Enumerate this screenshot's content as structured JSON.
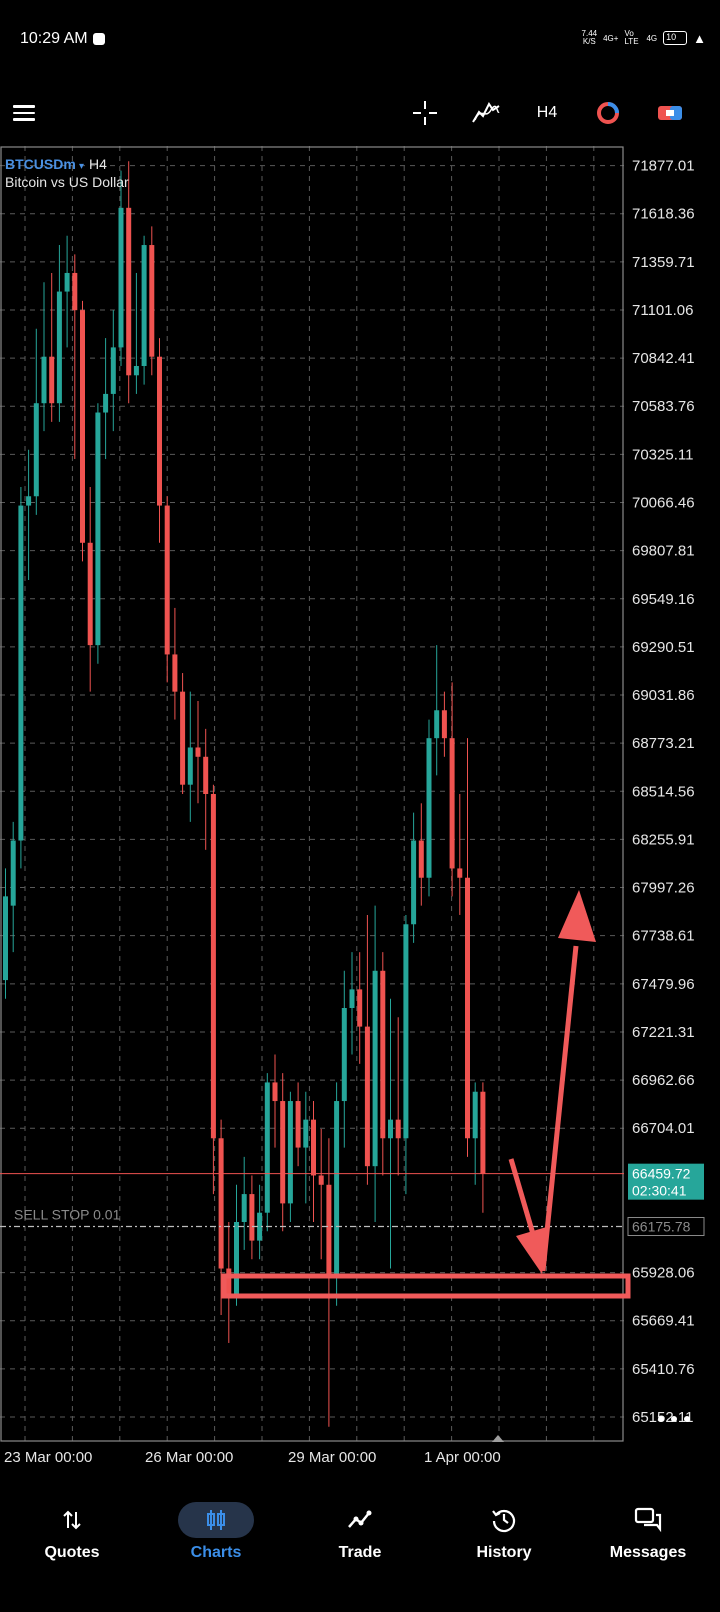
{
  "status_bar": {
    "time": "10:29 AM",
    "net_speed": "7.44",
    "net_unit": "K/S",
    "signal_1": "4G+",
    "volte": "Vo LTE",
    "signal_2": "4G",
    "battery": "10"
  },
  "toolbar": {
    "timeframe": "H4"
  },
  "chart_header": {
    "symbol": "BTCUSDm",
    "dropdown_marker": "▾",
    "timeframe": "H4",
    "description": "Bitcoin vs US Dollar"
  },
  "price_axis": [
    "71877.01",
    "71618.36",
    "71359.71",
    "71101.06",
    "70842.41",
    "70583.76",
    "70325.11",
    "70066.46",
    "69807.81",
    "69549.16",
    "69290.51",
    "69031.86",
    "68773.21",
    "68514.56",
    "68255.91",
    "67997.26",
    "67738.61",
    "67479.96",
    "67221.31",
    "66962.66",
    "66704.01",
    "65928.06",
    "65669.41",
    "65410.76",
    "65152.11"
  ],
  "time_axis": [
    "23 Mar 00:00",
    "26 Mar 00:00",
    "29 Mar 00:00",
    "1 Apr 00:00"
  ],
  "current_price": {
    "price": "66459.72",
    "countdown": "02:30:41"
  },
  "pending_order": {
    "label": "SELL STOP 0.01",
    "price": "66175.78"
  },
  "colors": {
    "bull": "#26a69a",
    "bear": "#ef5350",
    "accent": "#3b8ee8",
    "annotation": "#f05a5a"
  },
  "chart_data": {
    "type": "candlestick",
    "symbol": "BTCUSDm",
    "timeframe": "H4",
    "ylim": [
      65050,
      71950
    ],
    "candles": [
      {
        "o": 67500,
        "h": 68100,
        "l": 67400,
        "c": 67950
      },
      {
        "o": 67900,
        "h": 68350,
        "l": 67650,
        "c": 68250
      },
      {
        "o": 68250,
        "h": 70150,
        "l": 68100,
        "c": 70050
      },
      {
        "o": 70050,
        "h": 70350,
        "l": 69650,
        "c": 70100
      },
      {
        "o": 70100,
        "h": 71000,
        "l": 70000,
        "c": 70600
      },
      {
        "o": 70600,
        "h": 71250,
        "l": 70450,
        "c": 70850
      },
      {
        "o": 70850,
        "h": 71300,
        "l": 70500,
        "c": 70600
      },
      {
        "o": 70600,
        "h": 71450,
        "l": 70500,
        "c": 71200
      },
      {
        "o": 71200,
        "h": 71500,
        "l": 70900,
        "c": 71300
      },
      {
        "o": 71300,
        "h": 71400,
        "l": 70300,
        "c": 71100
      },
      {
        "o": 71100,
        "h": 71150,
        "l": 69750,
        "c": 69850
      },
      {
        "o": 69850,
        "h": 70150,
        "l": 69050,
        "c": 69300
      },
      {
        "o": 69300,
        "h": 70600,
        "l": 69200,
        "c": 70550
      },
      {
        "o": 70550,
        "h": 70950,
        "l": 70300,
        "c": 70650
      },
      {
        "o": 70650,
        "h": 71100,
        "l": 70450,
        "c": 70900
      },
      {
        "o": 70900,
        "h": 71850,
        "l": 70800,
        "c": 71650
      },
      {
        "o": 71650,
        "h": 71900,
        "l": 70600,
        "c": 70750
      },
      {
        "o": 70750,
        "h": 71300,
        "l": 70650,
        "c": 70800
      },
      {
        "o": 70800,
        "h": 71500,
        "l": 70700,
        "c": 71450
      },
      {
        "o": 71450,
        "h": 71550,
        "l": 70750,
        "c": 70850
      },
      {
        "o": 70850,
        "h": 70950,
        "l": 69850,
        "c": 70050
      },
      {
        "o": 70050,
        "h": 70100,
        "l": 69100,
        "c": 69250
      },
      {
        "o": 69250,
        "h": 69500,
        "l": 68900,
        "c": 69050
      },
      {
        "o": 69050,
        "h": 69150,
        "l": 68500,
        "c": 68550
      },
      {
        "o": 68550,
        "h": 69050,
        "l": 68350,
        "c": 68750
      },
      {
        "o": 68750,
        "h": 69000,
        "l": 68450,
        "c": 68700
      },
      {
        "o": 68700,
        "h": 68850,
        "l": 68200,
        "c": 68500
      },
      {
        "o": 68500,
        "h": 68550,
        "l": 66350,
        "c": 66650
      },
      {
        "o": 66650,
        "h": 66750,
        "l": 65700,
        "c": 65950
      },
      {
        "o": 65950,
        "h": 66200,
        "l": 65550,
        "c": 65800
      },
      {
        "o": 65800,
        "h": 66400,
        "l": 65750,
        "c": 66200
      },
      {
        "o": 66200,
        "h": 66550,
        "l": 66050,
        "c": 66350
      },
      {
        "o": 66350,
        "h": 66450,
        "l": 66000,
        "c": 66100
      },
      {
        "o": 66100,
        "h": 66400,
        "l": 66000,
        "c": 66250
      },
      {
        "o": 66250,
        "h": 67000,
        "l": 66150,
        "c": 66950
      },
      {
        "o": 66950,
        "h": 67100,
        "l": 66600,
        "c": 66850
      },
      {
        "o": 66850,
        "h": 67000,
        "l": 66150,
        "c": 66300
      },
      {
        "o": 66300,
        "h": 66900,
        "l": 66200,
        "c": 66850
      },
      {
        "o": 66850,
        "h": 66950,
        "l": 66500,
        "c": 66600
      },
      {
        "o": 66600,
        "h": 66900,
        "l": 66300,
        "c": 66750
      },
      {
        "o": 66750,
        "h": 66850,
        "l": 66200,
        "c": 66450
      },
      {
        "o": 66450,
        "h": 66700,
        "l": 66000,
        "c": 66400
      },
      {
        "o": 66400,
        "h": 66650,
        "l": 65100,
        "c": 65900
      },
      {
        "o": 65900,
        "h": 66950,
        "l": 65750,
        "c": 66850
      },
      {
        "o": 66850,
        "h": 67550,
        "l": 66600,
        "c": 67350
      },
      {
        "o": 67350,
        "h": 67650,
        "l": 67100,
        "c": 67450
      },
      {
        "o": 67450,
        "h": 67650,
        "l": 67050,
        "c": 67250
      },
      {
        "o": 67250,
        "h": 67850,
        "l": 66400,
        "c": 66500
      },
      {
        "o": 66500,
        "h": 67900,
        "l": 66200,
        "c": 67550
      },
      {
        "o": 67550,
        "h": 67650,
        "l": 66450,
        "c": 66650
      },
      {
        "o": 66650,
        "h": 67400,
        "l": 65950,
        "c": 66750
      },
      {
        "o": 66750,
        "h": 67300,
        "l": 66450,
        "c": 66650
      },
      {
        "o": 66650,
        "h": 67850,
        "l": 66350,
        "c": 67800
      },
      {
        "o": 67800,
        "h": 68400,
        "l": 67700,
        "c": 68250
      },
      {
        "o": 68250,
        "h": 68450,
        "l": 67900,
        "c": 68050
      },
      {
        "o": 68050,
        "h": 68900,
        "l": 67950,
        "c": 68800
      },
      {
        "o": 68800,
        "h": 69300,
        "l": 68600,
        "c": 68950
      },
      {
        "o": 68950,
        "h": 69050,
        "l": 68700,
        "c": 68800
      },
      {
        "o": 68800,
        "h": 69100,
        "l": 67950,
        "c": 68100
      },
      {
        "o": 68100,
        "h": 68500,
        "l": 67850,
        "c": 68050
      },
      {
        "o": 68050,
        "h": 68800,
        "l": 66550,
        "c": 66650
      },
      {
        "o": 66650,
        "h": 66950,
        "l": 66400,
        "c": 66900
      },
      {
        "o": 66900,
        "h": 66950,
        "l": 66250,
        "c": 66460
      }
    ]
  }
}
